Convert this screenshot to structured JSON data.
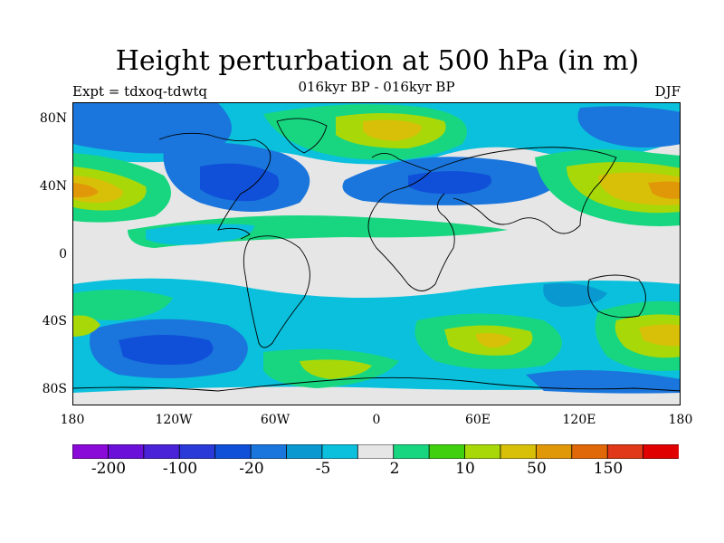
{
  "title": "Height perturbation at 500 hPa (in m)",
  "subtitle": "016kyr BP - 016kyr BP",
  "left_label": "Expt = tdxoq-tdwtq",
  "right_label": "DJF",
  "lat_ticks": [
    "80N",
    "40N",
    "0",
    "40S",
    "80S"
  ],
  "lon_ticks": [
    "180",
    "120W",
    "60W",
    "0",
    "60E",
    "120E",
    "180"
  ],
  "colorbar": {
    "colors": [
      "#8a0ad8",
      "#6a10d8",
      "#4a22d8",
      "#2a3ad8",
      "#1050d8",
      "#1a76dc",
      "#0a98d0",
      "#0ac0dc",
      "#e6e6e6",
      "#18d680",
      "#40d010",
      "#a8d808",
      "#d8c008",
      "#e09808",
      "#e06808",
      "#e03818",
      "#e00000"
    ],
    "labels": [
      "-200",
      "-100",
      "-20",
      "-5",
      "2",
      "10",
      "50",
      "150"
    ]
  },
  "palette": {
    "neutral": "#e6e6e6",
    "cyan": "#0ac0dc",
    "light_blue": "#0a98d0",
    "blue": "#1a76dc",
    "dark_blue": "#1050d8",
    "green": "#18d680",
    "lime": "#40d010",
    "yellow_green": "#a8d808",
    "gold": "#d8c008",
    "orange": "#e09808"
  }
}
